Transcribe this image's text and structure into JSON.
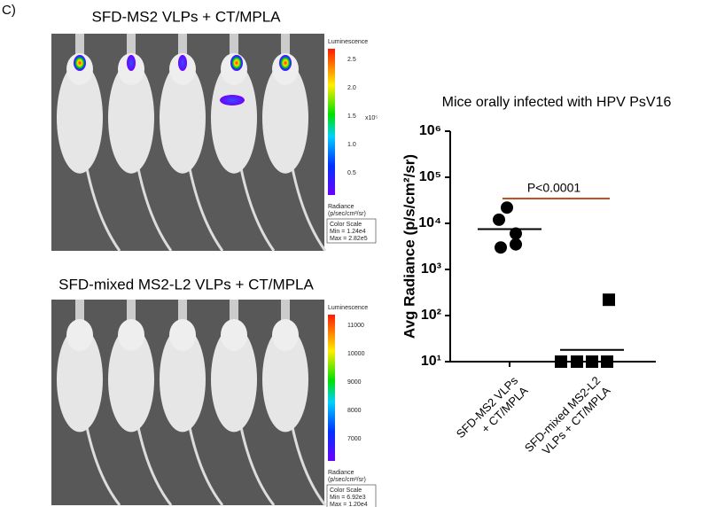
{
  "panel_label": "C)",
  "images": [
    {
      "title": "SFD-MS2 VLPs + CT/MPLA",
      "scale_title": "Luminescence",
      "scale_ticks": [
        "2.5",
        "2.0",
        "1.5",
        "1.0",
        "0.5"
      ],
      "scale_multiplier": "x10⁵",
      "unit_label": "Radiance",
      "unit": "(p/sec/cm²/sr)",
      "scale_box": [
        "Color Scale",
        "Min = 1.24e4",
        "Max = 2.82e5"
      ]
    },
    {
      "title": "SFD-mixed MS2-L2 VLPs + CT/MPLA",
      "scale_title": "Luminescence",
      "scale_ticks": [
        "11000",
        "10000",
        "9000",
        "8000",
        "7000"
      ],
      "unit_label": "Radiance",
      "unit": "(p/sec/cm²/sr)",
      "scale_box": [
        "Color Scale",
        "Min = 6.92e3",
        "Max = 1.20e4"
      ]
    }
  ],
  "chart_data": {
    "type": "scatter",
    "title": "Mice orally infected with HPV PsV16",
    "ylabel": "Avg Radiance (p/s/cm²/sr)",
    "log_scale": true,
    "categories": [
      [
        "SFD-MS2 VLPs",
        "+ CT/MPLA"
      ],
      [
        "SFD-mixed MS2-L2",
        "VLPs + CT/MPLA"
      ]
    ],
    "series": [
      {
        "name": "SFD-MS2 VLPs + CT/MPLA",
        "marker": "circle",
        "color": "#000000",
        "values": [
          22000,
          12000,
          6000,
          3000,
          3500
        ],
        "mean": 7500
      },
      {
        "name": "SFD-mixed MS2-L2 VLPs + CT/MPLA",
        "marker": "square",
        "color": "#000000",
        "values": [
          10,
          10,
          10,
          10,
          220
        ],
        "mean": 18
      }
    ],
    "ylim": [
      10,
      1000000
    ],
    "yticks": [
      {
        "value": 10,
        "label": "10¹"
      },
      {
        "value": 100,
        "label": "10²"
      },
      {
        "value": 1000,
        "label": "10³"
      },
      {
        "value": 10000,
        "label": "10⁴"
      },
      {
        "value": 100000,
        "label": "10⁵"
      },
      {
        "value": 1000000,
        "label": "10⁶"
      }
    ],
    "annotation": {
      "text": "P<0.0001",
      "color": "#c8501e"
    }
  }
}
